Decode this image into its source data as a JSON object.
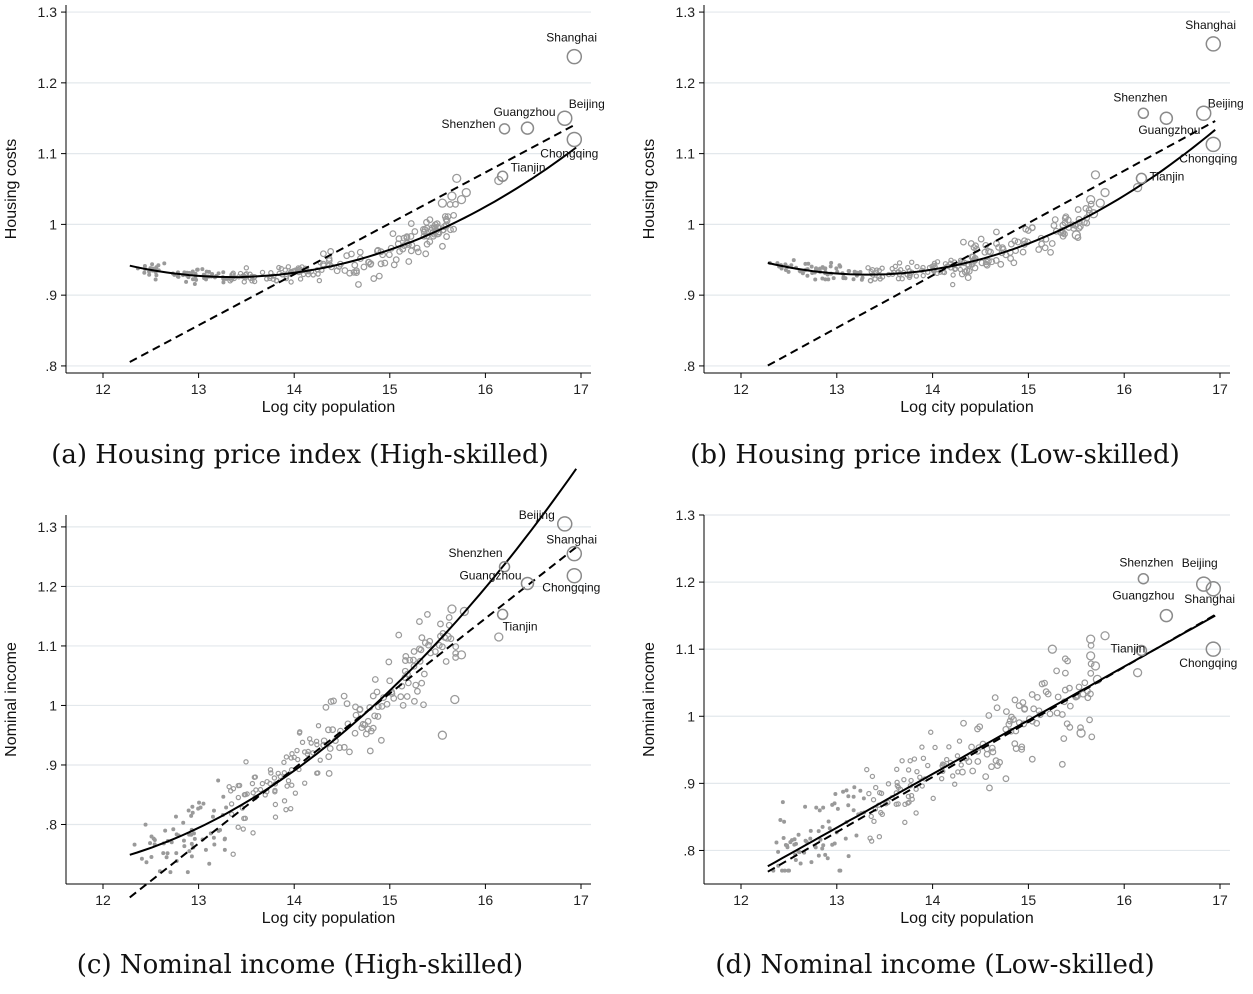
{
  "chart_data": [
    {
      "type": "scatter",
      "caption": "(a) Housing price index (High-skilled)",
      "xlabel": "Log city population",
      "ylabel": "Housing costs",
      "xlim": [
        12,
        17
      ],
      "ylim": [
        0.79,
        1.31
      ],
      "xticks": [
        "12",
        "13",
        "14",
        "15",
        "16",
        "17"
      ],
      "xtick_values": [
        12,
        13,
        14,
        15,
        16,
        17
      ],
      "yticks": [
        ".8",
        ".9",
        "1",
        "1.1",
        "1.2",
        "1.3"
      ],
      "ytick_values": [
        0.8,
        0.9,
        1.0,
        1.1,
        1.2,
        1.3
      ],
      "grid": true,
      "quadratic_fit": [
        0.941,
        -0.0295,
        0.0141
      ],
      "linear_fit": [
        0.807,
        0.072
      ],
      "cities": [
        {
          "name": "Shanghai",
          "x": 16.93,
          "y": 1.237
        },
        {
          "name": "Beijing",
          "x": 16.83,
          "y": 1.15
        },
        {
          "name": "Guangzhou",
          "x": 16.44,
          "y": 1.136
        },
        {
          "name": "Shenzhen",
          "x": 16.2,
          "y": 1.135
        },
        {
          "name": "Chongqing",
          "x": 16.93,
          "y": 1.12
        },
        {
          "name": "Tianjin",
          "x": 16.18,
          "y": 1.068
        }
      ],
      "big_points": [
        {
          "x": 15.7,
          "y": 1.065
        },
        {
          "x": 16.14,
          "y": 1.062
        },
        {
          "x": 15.65,
          "y": 1.04
        },
        {
          "x": 15.75,
          "y": 1.035
        },
        {
          "x": 15.5,
          "y": 0.988
        },
        {
          "x": 15.55,
          "y": 1.03
        },
        {
          "x": 15.8,
          "y": 1.045
        }
      ]
    },
    {
      "type": "scatter",
      "caption": "(b) Housing price index (Low-skilled)",
      "xlabel": "Log city population",
      "ylabel": "Housing costs",
      "xlim": [
        12,
        17
      ],
      "ylim": [
        0.79,
        1.31
      ],
      "xticks": [
        "12",
        "13",
        "14",
        "15",
        "16",
        "17"
      ],
      "xtick_values": [
        12,
        13,
        14,
        15,
        16,
        17
      ],
      "yticks": [
        ".8",
        ".9",
        "1",
        "1.1",
        "1.2",
        "1.3"
      ],
      "ytick_values": [
        0.8,
        0.9,
        1.0,
        1.1,
        1.2,
        1.3
      ],
      "grid": true,
      "quadratic_fit": [
        0.945,
        -0.0315,
        0.0155
      ],
      "linear_fit": [
        0.802,
        0.074
      ],
      "cities": [
        {
          "name": "Shanghai",
          "x": 16.93,
          "y": 1.255
        },
        {
          "name": "Beijing",
          "x": 16.83,
          "y": 1.157
        },
        {
          "name": "Shenzhen",
          "x": 16.2,
          "y": 1.157
        },
        {
          "name": "Guangzhou",
          "x": 16.44,
          "y": 1.15
        },
        {
          "name": "Chongqing",
          "x": 16.93,
          "y": 1.113
        },
        {
          "name": "Tianjin",
          "x": 16.18,
          "y": 1.065
        }
      ],
      "big_points": [
        {
          "x": 15.7,
          "y": 1.07
        },
        {
          "x": 16.14,
          "y": 1.052
        },
        {
          "x": 15.65,
          "y": 1.035
        },
        {
          "x": 15.75,
          "y": 1.03
        },
        {
          "x": 15.5,
          "y": 0.985
        },
        {
          "x": 15.68,
          "y": 1.015
        },
        {
          "x": 15.8,
          "y": 1.045
        }
      ]
    },
    {
      "type": "scatter",
      "caption": "(c) Nominal income (High-skilled)",
      "xlabel": "Log city population",
      "ylabel": "Nominal income",
      "xlim": [
        12,
        17
      ],
      "ylim": [
        0.7,
        1.32
      ],
      "xticks": [
        "12",
        "13",
        "14",
        "15",
        "16",
        "17"
      ],
      "xtick_values": [
        12,
        13,
        14,
        15,
        16,
        17
      ],
      "yticks": [
        ".8",
        ".9",
        "1",
        "1.1",
        "1.2",
        "1.3"
      ],
      "ytick_values": [
        0.8,
        0.9,
        1.0,
        1.1,
        1.2,
        1.3
      ],
      "grid": true,
      "quadratic_fit": [
        0.75,
        0.05,
        0.0192
      ],
      "linear_fit": [
        0.68,
        0.126
      ],
      "cities": [
        {
          "name": "Beijing",
          "x": 16.83,
          "y": 1.305
        },
        {
          "name": "Shanghai",
          "x": 16.93,
          "y": 1.255
        },
        {
          "name": "Shenzhen",
          "x": 16.2,
          "y": 1.233
        },
        {
          "name": "Guangzhou",
          "x": 16.44,
          "y": 1.205
        },
        {
          "name": "Chongqing",
          "x": 16.93,
          "y": 1.218
        },
        {
          "name": "Tianjin",
          "x": 16.18,
          "y": 1.153
        }
      ],
      "big_points": [
        {
          "x": 15.65,
          "y": 1.162
        },
        {
          "x": 15.78,
          "y": 1.158
        },
        {
          "x": 16.14,
          "y": 1.115
        },
        {
          "x": 15.75,
          "y": 1.085
        },
        {
          "x": 15.68,
          "y": 1.01
        },
        {
          "x": 15.55,
          "y": 0.95
        },
        {
          "x": 15.6,
          "y": 1.115
        }
      ]
    },
    {
      "type": "scatter",
      "caption": "(d) Nominal income (Low-skilled)",
      "xlabel": "Log city population",
      "ylabel": "Nominal income",
      "xlim": [
        12,
        17
      ],
      "ylim": [
        0.75,
        1.3
      ],
      "xticks": [
        "12",
        "13",
        "14",
        "15",
        "16",
        "17"
      ],
      "xtick_values": [
        12,
        13,
        14,
        15,
        16,
        17
      ],
      "yticks": [
        ".8",
        ".9",
        "1",
        "1.1",
        "1.2",
        "1.3"
      ],
      "ytick_values": [
        0.8,
        0.9,
        1.0,
        1.1,
        1.2,
        1.3
      ],
      "grid": true,
      "quadratic_fit": [
        0.778,
        0.08,
        0.0
      ],
      "linear_fit": [
        0.77,
        0.082
      ],
      "cities": [
        {
          "name": "Shenzhen",
          "x": 16.2,
          "y": 1.205
        },
        {
          "name": "Beijing",
          "x": 16.83,
          "y": 1.197
        },
        {
          "name": "Shanghai",
          "x": 16.93,
          "y": 1.19
        },
        {
          "name": "Guangzhou",
          "x": 16.44,
          "y": 1.15
        },
        {
          "name": "Tianjin",
          "x": 16.18,
          "y": 1.098
        },
        {
          "name": "Chongqing",
          "x": 16.93,
          "y": 1.1
        }
      ],
      "big_points": [
        {
          "x": 15.65,
          "y": 1.115
        },
        {
          "x": 15.8,
          "y": 1.12
        },
        {
          "x": 16.14,
          "y": 1.065
        },
        {
          "x": 15.65,
          "y": 1.09
        },
        {
          "x": 15.7,
          "y": 1.075
        },
        {
          "x": 15.55,
          "y": 0.975
        },
        {
          "x": 15.72,
          "y": 1.055
        },
        {
          "x": 15.25,
          "y": 1.1
        }
      ]
    }
  ]
}
